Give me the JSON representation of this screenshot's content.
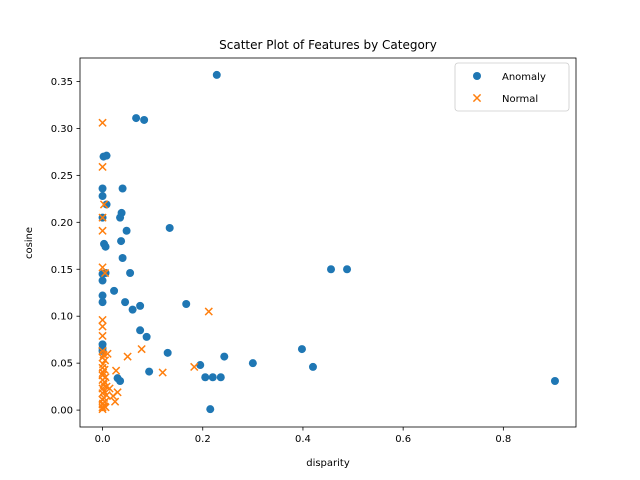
{
  "chart_data": {
    "type": "scatter",
    "title": "Scatter Plot of Features by Category",
    "xlabel": "disparity",
    "ylabel": "cosine",
    "xlim": [
      -0.045,
      0.945
    ],
    "ylim": [
      -0.018,
      0.375
    ],
    "xticks": [
      "0.0",
      "0.2",
      "0.4",
      "0.6",
      "0.8"
    ],
    "yticks": [
      "0.00",
      "0.05",
      "0.10",
      "0.15",
      "0.20",
      "0.25",
      "0.30",
      "0.35"
    ],
    "legend_position": "top-right",
    "series": [
      {
        "name": "Anomaly",
        "marker": "circle",
        "color": "#1f77b4",
        "points": [
          [
            0.228,
            0.357
          ],
          [
            0.067,
            0.311
          ],
          [
            0.083,
            0.309
          ],
          [
            0.002,
            0.27
          ],
          [
            0.008,
            0.271
          ],
          [
            0.0,
            0.236
          ],
          [
            0.04,
            0.236
          ],
          [
            0.0,
            0.228
          ],
          [
            0.008,
            0.219
          ],
          [
            0.0,
            0.205
          ],
          [
            0.038,
            0.21
          ],
          [
            0.035,
            0.205
          ],
          [
            0.134,
            0.194
          ],
          [
            0.048,
            0.191
          ],
          [
            0.037,
            0.18
          ],
          [
            0.003,
            0.177
          ],
          [
            0.006,
            0.174
          ],
          [
            0.04,
            0.162
          ],
          [
            0.456,
            0.15
          ],
          [
            0.488,
            0.15
          ],
          [
            0.0,
            0.145
          ],
          [
            0.055,
            0.146
          ],
          [
            0.006,
            0.146
          ],
          [
            0.0,
            0.138
          ],
          [
            0.023,
            0.127
          ],
          [
            0.0,
            0.122
          ],
          [
            0.0,
            0.115
          ],
          [
            0.045,
            0.115
          ],
          [
            0.167,
            0.113
          ],
          [
            0.075,
            0.111
          ],
          [
            0.06,
            0.107
          ],
          [
            0.075,
            0.085
          ],
          [
            0.088,
            0.078
          ],
          [
            0.0,
            0.07
          ],
          [
            0.0,
            0.066
          ],
          [
            0.0,
            0.063
          ],
          [
            0.398,
            0.065
          ],
          [
            0.13,
            0.061
          ],
          [
            0.243,
            0.057
          ],
          [
            0.3,
            0.05
          ],
          [
            0.195,
            0.048
          ],
          [
            0.42,
            0.046
          ],
          [
            0.093,
            0.041
          ],
          [
            0.205,
            0.035
          ],
          [
            0.22,
            0.035
          ],
          [
            0.236,
            0.035
          ],
          [
            0.03,
            0.034
          ],
          [
            0.035,
            0.031
          ],
          [
            0.903,
            0.031
          ],
          [
            0.215,
            0.001
          ]
        ]
      },
      {
        "name": "Normal",
        "marker": "x",
        "color": "#ff7f0e",
        "points": [
          [
            0.0,
            0.306
          ],
          [
            0.0,
            0.259
          ],
          [
            0.003,
            0.219
          ],
          [
            0.0,
            0.205
          ],
          [
            0.0,
            0.191
          ],
          [
            0.0,
            0.152
          ],
          [
            0.005,
            0.146
          ],
          [
            0.212,
            0.105
          ],
          [
            0.0,
            0.096
          ],
          [
            0.0,
            0.089
          ],
          [
            0.0,
            0.079
          ],
          [
            0.078,
            0.065
          ],
          [
            0.0,
            0.063
          ],
          [
            0.01,
            0.06
          ],
          [
            0.002,
            0.059
          ],
          [
            0.0,
            0.056
          ],
          [
            0.005,
            0.053
          ],
          [
            0.05,
            0.057
          ],
          [
            0.001,
            0.049
          ],
          [
            0.183,
            0.046
          ],
          [
            0.0,
            0.045
          ],
          [
            0.004,
            0.043
          ],
          [
            0.027,
            0.042
          ],
          [
            0.001,
            0.04
          ],
          [
            0.12,
            0.04
          ],
          [
            0.0,
            0.037
          ],
          [
            0.006,
            0.035
          ],
          [
            0.0,
            0.032
          ],
          [
            0.004,
            0.03
          ],
          [
            0.002,
            0.027
          ],
          [
            0.008,
            0.025
          ],
          [
            0.0,
            0.023
          ],
          [
            0.014,
            0.023
          ],
          [
            0.003,
            0.02
          ],
          [
            0.03,
            0.019
          ],
          [
            0.0,
            0.018
          ],
          [
            0.008,
            0.016
          ],
          [
            0.021,
            0.015
          ],
          [
            0.003,
            0.013
          ],
          [
            0.0,
            0.011
          ],
          [
            0.005,
            0.009
          ],
          [
            0.025,
            0.009
          ],
          [
            0.001,
            0.007
          ],
          [
            0.0,
            0.006
          ],
          [
            0.004,
            0.004
          ],
          [
            0.0,
            0.003
          ],
          [
            0.006,
            0.003
          ],
          [
            0.0,
            0.001
          ]
        ]
      }
    ]
  }
}
